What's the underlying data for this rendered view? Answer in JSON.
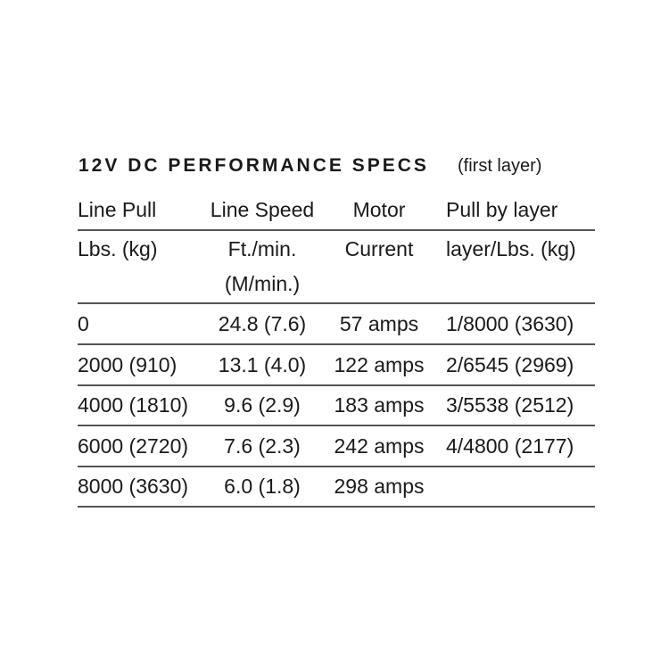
{
  "title": "12V DC PERFORMANCE SPECS",
  "subtitle": "(first layer)",
  "table": {
    "header": [
      "Line Pull",
      "Line Speed",
      "Motor",
      "Pull by layer"
    ],
    "units": [
      "Lbs. (kg)",
      "Ft./min.",
      "Current",
      "layer/Lbs. (kg)"
    ],
    "units_extra": "(M/min.)",
    "rows": [
      [
        "0",
        "24.8 (7.6)",
        "57 amps",
        "1/8000 (3630)"
      ],
      [
        "2000 (910)",
        "13.1 (4.0)",
        "122 amps",
        "2/6545 (2969)"
      ],
      [
        "4000 (1810)",
        "9.6 (2.9)",
        "183 amps",
        "3/5538 (2512)"
      ],
      [
        "6000 (2720)",
        "7.6 (2.3)",
        "242 amps",
        "4/4800 (2177)"
      ],
      [
        "8000 (3630)",
        "6.0 (1.8)",
        "298 amps"
      ]
    ]
  }
}
